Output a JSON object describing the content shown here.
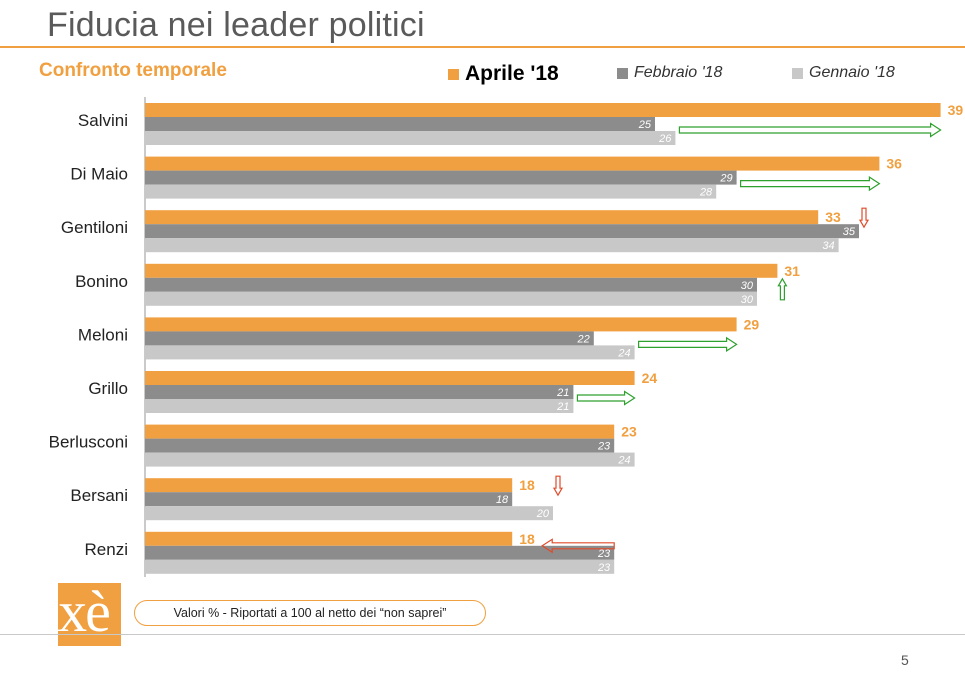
{
  "title": "Fiducia nei leader politici",
  "subtitle": "Confronto temporale",
  "note": "Valori % - Riportati a 100 al netto dei “non saprei”",
  "page_number": "5",
  "logo_text": "ixè",
  "colors": {
    "accent": "#f0a040",
    "apr": "#f0a040",
    "feb": "#8c8c8c",
    "gen": "#c8c8c8",
    "arrow_up": "#2ea02e",
    "arrow_down": "#e04a2a"
  },
  "chart_data": {
    "type": "bar",
    "orientation": "horizontal",
    "categories": [
      "Salvini",
      "Di Maio",
      "Gentiloni",
      "Bonino",
      "Meloni",
      "Grillo",
      "Berlusconi",
      "Bersani",
      "Renzi"
    ],
    "series": [
      {
        "name": "Aprile '18",
        "values": [
          39,
          36,
          33,
          31,
          29,
          24,
          23,
          18,
          18
        ]
      },
      {
        "name": "Febbraio '18",
        "values": [
          25,
          29,
          35,
          30,
          22,
          21,
          23,
          18,
          23
        ]
      },
      {
        "name": "Gennaio '18",
        "values": [
          26,
          28,
          34,
          30,
          24,
          21,
          24,
          20,
          23
        ]
      }
    ],
    "trend_arrows": [
      "up",
      "up",
      "down",
      "up",
      "up",
      "up",
      "none",
      "down",
      "down"
    ],
    "xlim": [
      0,
      40
    ],
    "legend": "top",
    "grid": false
  }
}
